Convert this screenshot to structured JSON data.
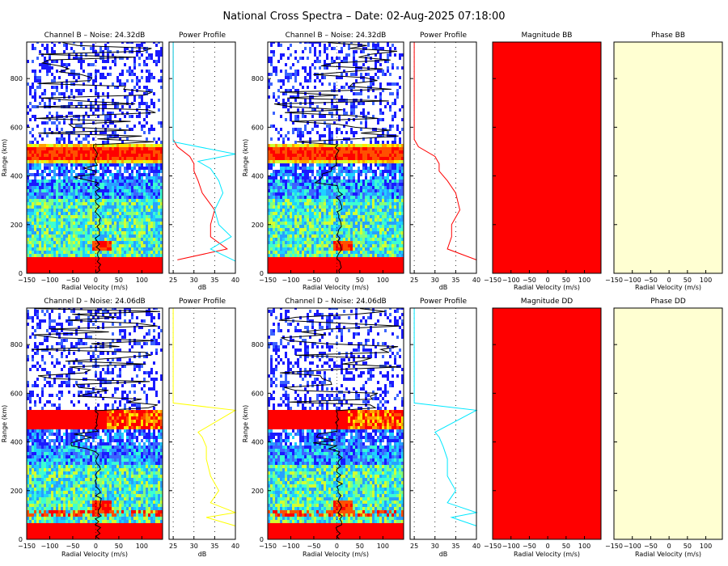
{
  "title": "National Cross Spectra – Date: 02-Aug-2025 07:18:00",
  "colors": {
    "red": "#ff0000",
    "yellow": "#ffff00",
    "cyan": "#00e8ff",
    "cream": "#ffffd2",
    "blue": "#1010ff",
    "black": "#000000"
  },
  "axes": {
    "velocity_label": "Radial Velocity (m/s)",
    "velocity_ticks": [
      "−150",
      "−100",
      "−50",
      "0",
      "50",
      "100"
    ],
    "range_label": "Range (km)",
    "range_ticks": [
      "0",
      "200",
      "400",
      "600",
      "800"
    ],
    "power_label": "dB",
    "power_ticks": [
      "25",
      "30",
      "35",
      "40"
    ]
  },
  "chart_data": [
    {
      "type": "heatmap",
      "title": "Channel B – Noise: 24.32dB",
      "xlabel": "Radial Velocity (m/s)",
      "ylabel": "Range (km)",
      "xlim": [
        -150,
        145
      ],
      "ylim": [
        0,
        950
      ],
      "strong_echo_bands_km": [
        [
          0,
          55
        ],
        [
          445,
          530
        ]
      ],
      "doppler_peak_km": [
        90,
        120
      ]
    },
    {
      "type": "line",
      "title": "Power Profile",
      "xlabel": "dB",
      "xlim": [
        24,
        40
      ],
      "ylim": [
        0,
        950
      ],
      "series": [
        {
          "color": "red",
          "x": [
            26,
            38,
            34,
            34,
            35,
            32,
            31,
            30,
            30,
            29,
            26,
            25,
            25,
            25,
            25
          ],
          "y": [
            55,
            100,
            150,
            200,
            260,
            330,
            380,
            420,
            450,
            480,
            520,
            550,
            650,
            800,
            950
          ]
        },
        {
          "color": "cyan",
          "x": [
            40,
            34,
            39,
            36,
            35,
            37,
            36,
            34,
            31,
            40,
            25,
            25,
            25,
            25
          ],
          "y": [
            50,
            100,
            150,
            200,
            260,
            330,
            380,
            430,
            460,
            490,
            540,
            650,
            800,
            950
          ]
        }
      ]
    },
    {
      "type": "heatmap",
      "title": "Channel B – Noise: 24.32dB",
      "xlabel": "Radial Velocity (m/s)",
      "ylabel": "Range (km)",
      "xlim": [
        -150,
        145
      ],
      "ylim": [
        0,
        950
      ],
      "strong_echo_bands_km": [
        [
          0,
          55
        ],
        [
          445,
          530
        ]
      ],
      "doppler_peak_km": [
        90,
        120
      ]
    },
    {
      "type": "line",
      "title": "Power Profile",
      "xlabel": "dB",
      "xlim": [
        24,
        40
      ],
      "ylim": [
        0,
        950
      ],
      "series": [
        {
          "color": "red",
          "x": [
            40,
            33,
            34,
            34,
            36,
            35,
            33,
            31,
            31,
            30,
            26,
            25,
            25,
            25,
            25
          ],
          "y": [
            55,
            100,
            150,
            200,
            260,
            330,
            380,
            420,
            450,
            480,
            520,
            550,
            650,
            800,
            950
          ]
        }
      ]
    },
    {
      "type": "heatmap",
      "title": "Magnitude BB",
      "xlabel": "Radial Velocity (m/s)",
      "xlim": [
        -150,
        145
      ],
      "fill": "red"
    },
    {
      "type": "heatmap",
      "title": "Phase BB",
      "xlabel": "Radial Velocity (m/s)",
      "xlim": [
        -150,
        145
      ],
      "fill": "cream"
    },
    {
      "type": "heatmap",
      "title": "Channel D – Noise: 24.06dB",
      "xlabel": "Radial Velocity (m/s)",
      "ylabel": "Range (km)",
      "xlim": [
        -150,
        145
      ],
      "ylim": [
        0,
        950
      ],
      "strong_echo_bands_km": [
        [
          0,
          55
        ],
        [
          445,
          530
        ]
      ],
      "doppler_peak_km": [
        100,
        150
      ]
    },
    {
      "type": "line",
      "title": "Power Profile",
      "xlabel": "dB",
      "xlim": [
        24,
        40
      ],
      "ylim": [
        0,
        950
      ],
      "series": [
        {
          "color": "yellow",
          "x": [
            40,
            33,
            40,
            34,
            36,
            34,
            33,
            33,
            32,
            31,
            40,
            25,
            25,
            25,
            25
          ],
          "y": [
            55,
            90,
            110,
            150,
            200,
            260,
            330,
            380,
            420,
            440,
            530,
            560,
            650,
            800,
            950
          ]
        }
      ]
    },
    {
      "type": "heatmap",
      "title": "Channel D – Noise: 24.06dB",
      "xlabel": "Radial Velocity (m/s)",
      "ylabel": "Range (km)",
      "xlim": [
        -150,
        145
      ],
      "ylim": [
        0,
        950
      ],
      "strong_echo_bands_km": [
        [
          0,
          55
        ],
        [
          445,
          530
        ]
      ],
      "doppler_peak_km": [
        100,
        150
      ]
    },
    {
      "type": "line",
      "title": "Power Profile",
      "xlabel": "dB",
      "xlim": [
        24,
        40
      ],
      "ylim": [
        0,
        950
      ],
      "series": [
        {
          "color": "cyan",
          "x": [
            40,
            34,
            40,
            33,
            35,
            33,
            33,
            32,
            31,
            30,
            40,
            25,
            25,
            25,
            25
          ],
          "y": [
            55,
            90,
            110,
            150,
            200,
            260,
            330,
            380,
            420,
            440,
            530,
            560,
            650,
            800,
            950
          ]
        }
      ]
    },
    {
      "type": "heatmap",
      "title": "Magnitude DD",
      "xlabel": "Radial Velocity (m/s)",
      "xlim": [
        -150,
        145
      ],
      "fill": "red"
    },
    {
      "type": "heatmap",
      "title": "Phase DD",
      "xlabel": "Radial Velocity (m/s)",
      "xlim": [
        -150,
        145
      ],
      "fill": "cream"
    }
  ]
}
